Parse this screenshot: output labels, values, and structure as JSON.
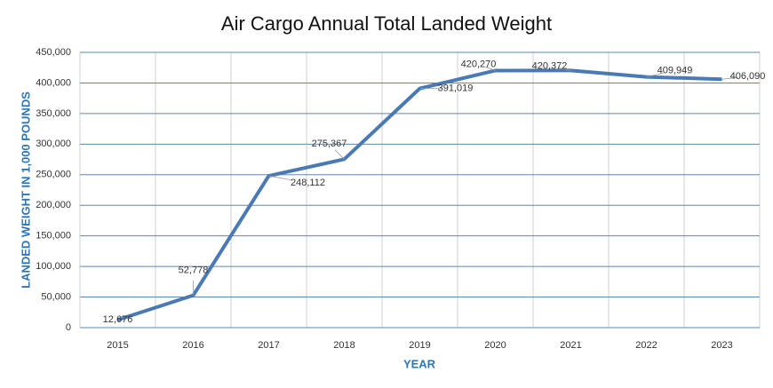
{
  "chart_data": {
    "type": "line",
    "title": "Air Cargo Annual Total Landed Weight",
    "x_label": "YEAR",
    "y_label": "LANDED WEIGHT IN 1,000 POUNDS",
    "categories": [
      "2015",
      "2016",
      "2017",
      "2018",
      "2019",
      "2020",
      "2021",
      "2022",
      "2023"
    ],
    "values": [
      12676,
      52778,
      248112,
      275367,
      391019,
      420270,
      420372,
      409949,
      406090
    ],
    "value_labels": [
      "12,676",
      "52,778",
      "248,112",
      "275,367",
      "391,019",
      "420,270",
      "420,372",
      "409,949",
      "406,090"
    ],
    "color": "#4a7ab5",
    "ylim": [
      0,
      450000
    ],
    "yticks": [
      0,
      {
        "value": 50000,
        "label": "50,000"
      },
      {
        "value": 100000,
        "label": "100,000"
      },
      {
        "value": 150000,
        "label": "150,000"
      },
      {
        "value": 200000,
        "label": "200,000"
      },
      {
        "value": 250000,
        "label": "250,000"
      },
      {
        "value": 300000,
        "label": "300,000"
      },
      {
        "value": 350000,
        "label": "350,000"
      },
      {
        "value": 400000,
        "label": "400,000"
      },
      {
        "value": 450000,
        "label": "450,000"
      }
    ],
    "grid": true
  }
}
